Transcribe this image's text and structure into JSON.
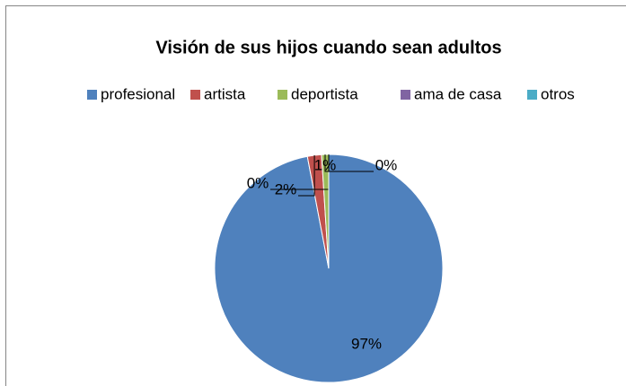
{
  "chart_data": {
    "type": "pie",
    "title": "Visión de sus hijos cuando sean adultos",
    "categories": [
      "profesional",
      "artista",
      "deportista",
      "ama de casa",
      "otros"
    ],
    "values": [
      97,
      2,
      1,
      0,
      0
    ],
    "value_labels": [
      "97%",
      "2%",
      "1%",
      "0%",
      "0%"
    ],
    "colors": [
      "#4f81bd",
      "#c0504d",
      "#9bbb59",
      "#8064a2",
      "#4bacc6"
    ],
    "legend": "top"
  }
}
